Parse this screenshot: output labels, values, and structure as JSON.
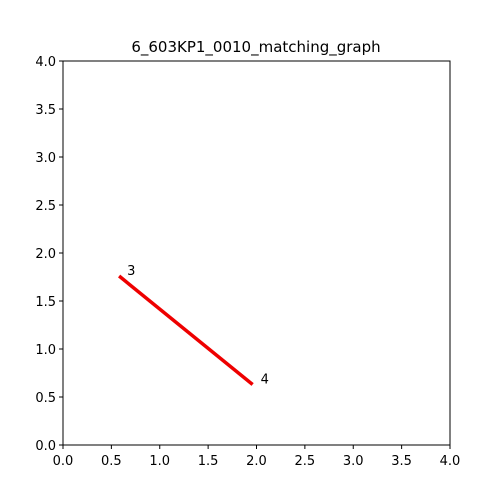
{
  "chart_data": {
    "type": "line",
    "title": "6_603KP1_0010_matching_graph",
    "xlabel": "",
    "ylabel": "",
    "xlim": [
      0,
      4
    ],
    "ylim": [
      0,
      4
    ],
    "grid": false,
    "xticks": [
      "0.0",
      "0.5",
      "1.0",
      "1.5",
      "2.0",
      "2.5",
      "3.0",
      "3.5",
      "4.0"
    ],
    "yticks": [
      "0.0",
      "0.5",
      "1.0",
      "1.5",
      "2.0",
      "2.5",
      "3.0",
      "3.5",
      "4.0"
    ],
    "nodes": [
      {
        "label": "3",
        "x": 0.58,
        "y": 1.76
      },
      {
        "label": "4",
        "x": 1.96,
        "y": 0.63
      }
    ],
    "edges": [
      {
        "from": "3",
        "to": "4",
        "color": "#ee0000"
      }
    ]
  }
}
